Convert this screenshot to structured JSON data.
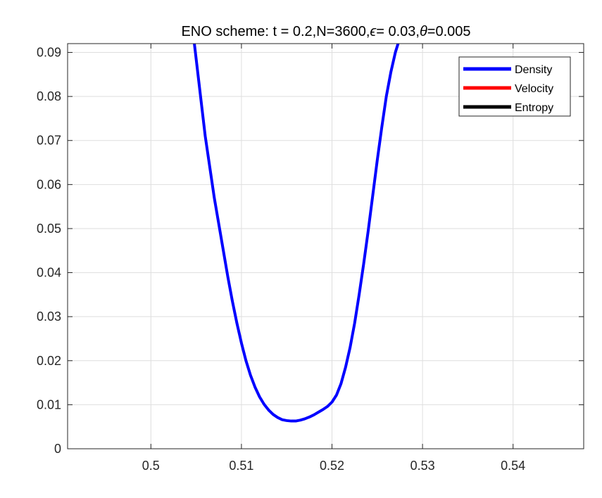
{
  "chart_data": {
    "type": "line",
    "title_parts": {
      "prefix": "ENO scheme:  t = 0.2,N=3600,",
      "epsilon_symbol": "ϵ",
      "epsilon_value": "= 0.03,",
      "theta_symbol": "θ",
      "theta_value": "=0.005"
    },
    "xlabel": "",
    "ylabel": "",
    "xlim": [
      0.4908,
      0.5478
    ],
    "ylim": [
      0,
      0.092
    ],
    "xticks": [
      0.5,
      0.51,
      0.52,
      0.53,
      0.54
    ],
    "xtick_labels": [
      "0.5",
      "0.51",
      "0.52",
      "0.53",
      "0.54"
    ],
    "yticks": [
      0,
      0.01,
      0.02,
      0.03,
      0.04,
      0.05,
      0.06,
      0.07,
      0.08,
      0.09
    ],
    "ytick_labels": [
      "0",
      "0.01",
      "0.02",
      "0.03",
      "0.04",
      "0.05",
      "0.06",
      "0.07",
      "0.08",
      "0.09"
    ],
    "grid": true,
    "legend_position": "top-right",
    "series": [
      {
        "name": "Density",
        "color": "#0000ff",
        "x": [
          0.5048,
          0.5052,
          0.5056,
          0.506,
          0.5065,
          0.507,
          0.5075,
          0.508,
          0.5085,
          0.509,
          0.5095,
          0.51,
          0.5105,
          0.511,
          0.5115,
          0.512,
          0.5125,
          0.513,
          0.5135,
          0.514,
          0.5145,
          0.515,
          0.5155,
          0.516,
          0.5165,
          0.517,
          0.5175,
          0.518,
          0.5185,
          0.519,
          0.5195,
          0.52,
          0.5205,
          0.521,
          0.5215,
          0.522,
          0.5225,
          0.523,
          0.5235,
          0.524,
          0.5245,
          0.525,
          0.5255,
          0.526,
          0.5265,
          0.527,
          0.5273
        ],
        "y": [
          0.092,
          0.085,
          0.078,
          0.071,
          0.064,
          0.057,
          0.051,
          0.045,
          0.039,
          0.0335,
          0.0285,
          0.024,
          0.02,
          0.0167,
          0.014,
          0.0118,
          0.0101,
          0.0088,
          0.0078,
          0.0071,
          0.0066,
          0.0064,
          0.0063,
          0.0063,
          0.0065,
          0.0068,
          0.0072,
          0.0077,
          0.0083,
          0.0089,
          0.0096,
          0.0106,
          0.0122,
          0.0148,
          0.0185,
          0.023,
          0.0285,
          0.035,
          0.042,
          0.0495,
          0.0575,
          0.0655,
          0.073,
          0.08,
          0.0855,
          0.09,
          0.092
        ]
      },
      {
        "name": "Velocity",
        "color": "#ff0000",
        "x": [],
        "y": []
      },
      {
        "name": "Entropy",
        "color": "#000000",
        "x": [],
        "y": []
      }
    ]
  }
}
